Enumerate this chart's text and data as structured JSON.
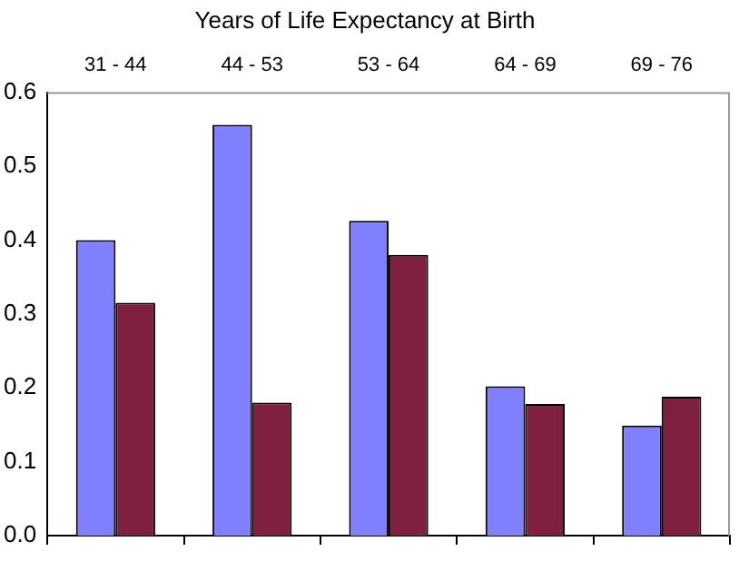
{
  "chart_data": {
    "type": "bar",
    "title": "Years of Life Expectancy at Birth",
    "categories": [
      "31 - 44",
      "44 - 53",
      "53 - 64",
      "64 - 69",
      "69 - 76"
    ],
    "series": [
      {
        "color": "#8080ff",
        "values": [
          0.4,
          0.556,
          0.426,
          0.202,
          0.149
        ]
      },
      {
        "color": "#802040",
        "values": [
          0.315,
          0.18,
          0.38,
          0.178,
          0.188
        ]
      }
    ],
    "ylim": [
      0,
      0.6
    ],
    "yticks": [
      {
        "value": 0,
        "label": "0.0"
      },
      {
        "value": 0.1,
        "label": "0.1"
      },
      {
        "value": 0.2,
        "label": "0.2"
      },
      {
        "value": 0.3,
        "label": "0.3"
      },
      {
        "value": 0.4,
        "label": "0.4"
      },
      {
        "value": 0.5,
        "label": "0.5"
      },
      {
        "value": 0.6,
        "label": "0.6"
      }
    ],
    "grid": false,
    "legend": false
  }
}
